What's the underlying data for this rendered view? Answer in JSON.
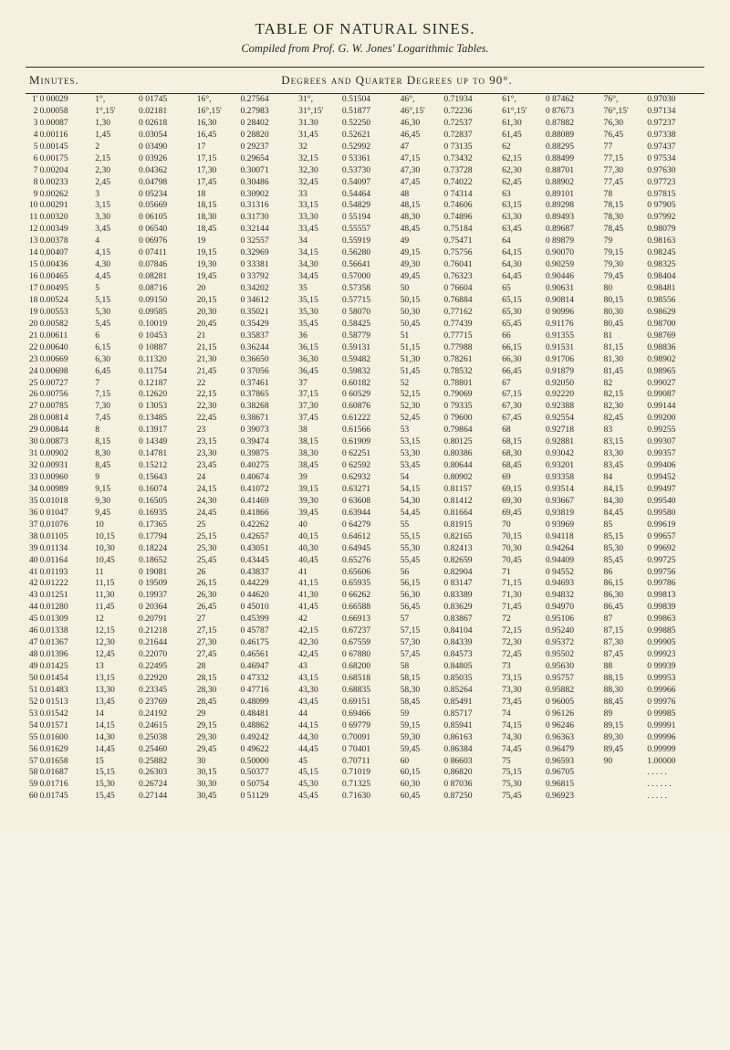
{
  "title": "TABLE OF NATURAL SINES.",
  "subtitle": "Compiled from Prof. G. W. Jones' Logarithmic Tables.",
  "header_minutes": "Minutes.",
  "header_degrees": "Degrees and Quarter Degrees up to 90°.",
  "colors": {
    "paper": "#f4f1e0",
    "ink": "#2a2a1f"
  },
  "typography": {
    "title_fontsize_pt": 13,
    "subtitle_fontsize_pt": 9.5,
    "body_fontsize_pt": 7
  },
  "columns": [
    {
      "label": "",
      "class": "c-idx"
    },
    {
      "label": "",
      "class": "c-min"
    },
    {
      "label": "",
      "class": "c-deg"
    },
    {
      "label": "",
      "class": "c-val"
    },
    {
      "label": "",
      "class": "c-deg"
    },
    {
      "label": "",
      "class": "c-val"
    },
    {
      "label": "",
      "class": "c-deg"
    },
    {
      "label": "",
      "class": "c-val"
    },
    {
      "label": "",
      "class": "c-deg"
    },
    {
      "label": "",
      "class": "c-val"
    },
    {
      "label": "",
      "class": "c-deg"
    },
    {
      "label": "",
      "class": "c-val"
    },
    {
      "label": "",
      "class": "c-deg"
    },
    {
      "label": "",
      "class": "c-val"
    }
  ],
  "rows": [
    [
      "1'",
      "0 00029",
      "1°,",
      "0 01745",
      "16°,",
      "0.27564",
      "31°,",
      "0.51504",
      "46°,",
      "0.71934",
      "61°,",
      "0 87462",
      "76°,",
      "0.97030"
    ],
    [
      "2",
      "0.00058",
      "1°,15'",
      "0.02181",
      "16°,15'",
      "0.27983",
      "31°,15'",
      "0.51877",
      "46°,15'",
      "0.72236",
      "61°,15'",
      "0 87673",
      "76°,15'",
      "0.97134"
    ],
    [
      "3",
      "0.00087",
      "1,30",
      "0 02618",
      "16,30",
      "0 28402",
      "31.30",
      "0.52250",
      "46,30",
      "0.72537",
      "61,30",
      "0.87882",
      "76,30",
      "0.97237"
    ],
    [
      "4",
      "0.00116",
      "1,45",
      "0.03054",
      "16,45",
      "0 28820",
      "31,45",
      "0.52621",
      "46,45",
      "0.72837",
      "61,45",
      "0.88089",
      "76,45",
      "0.97338"
    ],
    [
      "5",
      "0.00145",
      "2",
      "0 03490",
      "17",
      "0 29237",
      "32",
      "0.52992",
      "47",
      "0 73135",
      "62",
      "0.88295",
      "77",
      "0.97437"
    ],
    [
      "6",
      "0.00175",
      "2,15",
      "0 03926",
      "17,15",
      "0.29654",
      "32,15",
      "0 53361",
      "47,15",
      "0.73432",
      "62,15",
      "0.88499",
      "77,15",
      "0 97534"
    ],
    [
      "7",
      "0.00204",
      "2,30",
      "0.04362",
      "17,30",
      "0.30071",
      "32,30",
      "0.53730",
      "47,30",
      "0.73728",
      "62,30",
      "0.88701",
      "77,30",
      "0.97630"
    ],
    [
      "8",
      "0.00233",
      "2,45",
      "0.04798",
      "17,45",
      "0.30486",
      "32,45",
      "0.54097",
      "47,45",
      "0.74022",
      "62,45",
      "0.88902",
      "77,45",
      "0.97723"
    ],
    [
      "9",
      "0.00262",
      "3",
      "0 05234",
      "18",
      "0.30902",
      "33",
      "0.54464",
      "48",
      "0 74314",
      "63",
      "0.89101",
      "78",
      "0.97815"
    ],
    [
      "10",
      "0.00291",
      "3,15",
      "0.05669",
      "18,15",
      "0.31316",
      "33,15",
      "0.54829",
      "48,15",
      "0.74606",
      "63,15",
      "0.89298",
      "78,15",
      "0 97905"
    ],
    [
      "11",
      "0.00320",
      "3,30",
      "0 06105",
      "18,30",
      "0.31730",
      "33,30",
      "0 55194",
      "48,30",
      "0.74896",
      "63,30",
      "0.89493",
      "78,30",
      "0.97992"
    ],
    [
      "12",
      "0.00349",
      "3,45",
      "0 06540",
      "18,45",
      "0.32144",
      "33,45",
      "0.55557",
      "48,45",
      "0.75184",
      "63,45",
      "0.89687",
      "78,45",
      "0.98079"
    ],
    [
      "13",
      "0.00378",
      "4",
      "0 06976",
      "19",
      "0 32557",
      "34",
      "0.55919",
      "49",
      "0.75471",
      "64",
      "0 89879",
      "79",
      "0.98163"
    ],
    [
      "14",
      "0.00407",
      "4,15",
      "0 07411",
      "19,15",
      "0.32969",
      "34,15",
      "0.56280",
      "49,15",
      "0.75756",
      "64,15",
      "0.90070",
      "79,15",
      "0.98245"
    ],
    [
      "15",
      "0.00436",
      "4,30",
      "0.07846",
      "19,30",
      "0 33381",
      "34,30",
      "0.56641",
      "49,30",
      "0.76041",
      "64,30",
      "0.90259",
      "79,30",
      "0.98325"
    ],
    [
      "16",
      "0.00465",
      "4,45",
      "0.08281",
      "19,45",
      "0 33792",
      "34,45",
      "0.57000",
      "49,45",
      "0.76323",
      "64,45",
      "0.90446",
      "79,45",
      "0.98404"
    ],
    [
      "17",
      "0.00495",
      "5",
      "0.08716",
      "20",
      "0.34202",
      "35",
      "0.57358",
      "50",
      "0 76604",
      "65",
      "0.90631",
      "80",
      "0.98481"
    ],
    [
      "18",
      "0.00524",
      "5,15",
      "0.09150",
      "20,15",
      "0 34612",
      "35,15",
      "0.57715",
      "50,15",
      "0.76884",
      "65,15",
      "0.90814",
      "80,15",
      "0.98556"
    ],
    [
      "19",
      "0.00553",
      "5,30",
      "0.09585",
      "20,30",
      "0.35021",
      "35,30",
      "0 58070",
      "50,30",
      "0.77162",
      "65,30",
      "0 90996",
      "80,30",
      "0.98629"
    ],
    [
      "20",
      "0.00582",
      "5,45",
      "0.10019",
      "20,45",
      "0.35429",
      "35,45",
      "0.58425",
      "50,45",
      "0.77439",
      "65,45",
      "0.91176",
      "80,45",
      "0.98700"
    ],
    [
      "21",
      "0.00611",
      "6",
      "0 10453",
      "21",
      "0.35837",
      "36",
      "0.58779",
      "51",
      "0.77715",
      "66",
      "0.91355",
      "81",
      "0.98769"
    ],
    [
      "22",
      "0.00640",
      "6,15",
      "0 10887",
      "21,15",
      "0.36244",
      "36,15",
      "0.59131",
      "51,15",
      "0.77988",
      "66,15",
      "0.91531",
      "81,15",
      "0.98836"
    ],
    [
      "23",
      "0.00669",
      "6,30",
      "0.11320",
      "21,30",
      "0.36650",
      "36,30",
      "0.59482",
      "51,30",
      "0.78261",
      "66,30",
      "0.91706",
      "81,30",
      "0.98902"
    ],
    [
      "24",
      "0.00698",
      "6,45",
      "0.11754",
      "21,45",
      "0 37056",
      "36,45",
      "0.59832",
      "51,45",
      "0.78532",
      "66,45",
      "0.91879",
      "81,45",
      "0.98965"
    ],
    [
      "25",
      "0.00727",
      "7",
      "0.12187",
      "22",
      "0.37461",
      "37",
      "0.60182",
      "52",
      "0.78801",
      "67",
      "0.92050",
      "82",
      "0.99027"
    ],
    [
      "26",
      "0.00756",
      "7,15",
      "0.12620",
      "22,15",
      "0.37865",
      "37,15",
      "0 60529",
      "52,15",
      "0.79069",
      "67,15",
      "0.92220",
      "82,15",
      "0.99087"
    ],
    [
      "27",
      "0.00785",
      "7,30",
      "0 13053",
      "22,30",
      "0.38268",
      "37,30",
      "0.60876",
      "52,30",
      "0 79335",
      "67,30",
      "0.92388",
      "82,30",
      "0.99144"
    ],
    [
      "28",
      "0.00814",
      "7,45",
      "0.13485",
      "22,45",
      "0.38671",
      "37,45",
      "0.61222",
      "52,45",
      "0 79600",
      "67,45",
      "0.92554",
      "82,45",
      "0.99200"
    ],
    [
      "29",
      "0.00844",
      "8",
      "0.13917",
      "23",
      "0 39073",
      "38",
      "0.61566",
      "53",
      "0.79864",
      "68",
      "0.92718",
      "83",
      "0.99255"
    ],
    [
      "30",
      "0.00873",
      "8,15",
      "0 14349",
      "23,15",
      "0.39474",
      "38,15",
      "0.61909",
      "53,15",
      "0.80125",
      "68,15",
      "0.92881",
      "83,15",
      "0.99307"
    ],
    [
      "31",
      "0.00902",
      "8,30",
      "0.14781",
      "23,30",
      "0.39875",
      "38,30",
      "0 62251",
      "53,30",
      "0.80386",
      "68,30",
      "0.93042",
      "83,30",
      "0.99357"
    ],
    [
      "32",
      "0.00931",
      "8,45",
      "0.15212",
      "23,45",
      "0.40275",
      "38,45",
      "0 62592",
      "53,45",
      "0.80644",
      "68,45",
      "0.93201",
      "83,45",
      "0.99406"
    ],
    [
      "33",
      "0.00960",
      "9",
      "0.15643",
      "24",
      "0.40674",
      "39",
      "0.62932",
      "54",
      "0.80902",
      "69",
      "0.93358",
      "84",
      "0.99452"
    ],
    [
      "34",
      "0.00989",
      "9,15",
      "0.16074",
      "24,15",
      "0.41072",
      "39,15",
      "0.63271",
      "54,15",
      "0.81157",
      "69,15",
      "0.93514",
      "84,15",
      "0.99497"
    ],
    [
      "35",
      "0.01018",
      "9,30",
      "0.16505",
      "24,30",
      "0.41469",
      "39,30",
      "0 63608",
      "54,30",
      "0.81412",
      "69,30",
      "0.93667",
      "84,30",
      "0.99540"
    ],
    [
      "36",
      "0 01047",
      "9,45",
      "0.16935",
      "24,45",
      "0.41866",
      "39,45",
      "0.63944",
      "54,45",
      "0.81664",
      "69,45",
      "0.93819",
      "84,45",
      "0.99580"
    ],
    [
      "37",
      "0.01076",
      "10",
      "0.17365",
      "25",
      "0.42262",
      "40",
      "0 64279",
      "55",
      "0.81915",
      "70",
      "0 93969",
      "85",
      "0.99619"
    ],
    [
      "38",
      "0.01105",
      "10,15",
      "0.17794",
      "25,15",
      "0.42657",
      "40,15",
      "0.64612",
      "55,15",
      "0.82165",
      "70,15",
      "0.94118",
      "85,15",
      "0 99657"
    ],
    [
      "39",
      "0.01134",
      "10,30",
      "0.18224",
      "25,30",
      "0.43051",
      "40,30",
      "0.64945",
      "55,30",
      "0.82413",
      "70,30",
      "0.94264",
      "85,30",
      "0 99692"
    ],
    [
      "40",
      "0.01164",
      "10,45",
      "0.18652",
      "25,45",
      "0.43445",
      "40,45",
      "0.65276",
      "55,45",
      "0.82659",
      "70,45",
      "0.94409",
      "85,45",
      "0.99725"
    ],
    [
      "41",
      "0.01193",
      "11",
      "0 19081",
      "26",
      "0.43837",
      "41",
      "0.65606",
      "56",
      "0.82904",
      "71",
      "0 94552",
      "86",
      "0.99756"
    ],
    [
      "42",
      "0.01222",
      "11,15",
      "0 19509",
      "26,15",
      "0.44229",
      "41,15",
      "0.65935",
      "56,15",
      "0 83147",
      "71,15",
      "0.94693",
      "86,15",
      "0.99786"
    ],
    [
      "43",
      "0.01251",
      "11,30",
      "0.19937",
      "26,30",
      "0 44620",
      "41,30",
      "0 66262",
      "56,30",
      "0.83389",
      "71,30",
      "0.94832",
      "86,30",
      "0.99813"
    ],
    [
      "44",
      "0.01280",
      "11,45",
      "0 20364",
      "26,45",
      "0 45010",
      "41,45",
      "0.66588",
      "56,45",
      "0.83629",
      "71,45",
      "0.94970",
      "86,45",
      "0.99839"
    ],
    [
      "45",
      "0.01309",
      "12",
      "0.20791",
      "27",
      "0.45399",
      "42",
      "0.66913",
      "57",
      "0.83867",
      "72",
      "0.95106",
      "87",
      "0.99863"
    ],
    [
      "46",
      "0.01338",
      "12,15",
      "0.21218",
      "27,15",
      "0 45787",
      "42,15",
      "0.67237",
      "57,15",
      "0.84104",
      "72,15",
      "0.95240",
      "87,15",
      "0.99885"
    ],
    [
      "47",
      "0.01367",
      "12,30",
      "0.21644",
      "27,30",
      "0.46175",
      "42,30",
      "0.67559",
      "57,30",
      "0.84339",
      "72,30",
      "0.95372",
      "87,30",
      "0.99905"
    ],
    [
      "48",
      "0.01396",
      "12,45",
      "0.22070",
      "27,45",
      "0.46561",
      "42,45",
      "0 67880",
      "57,45",
      "0.84573",
      "72,45",
      "0.95502",
      "87,45",
      "0.99923"
    ],
    [
      "49",
      "0.01425",
      "13",
      "0.22495",
      "28",
      "0.46947",
      "43",
      "0.68200",
      "58",
      "0.84805",
      "73",
      "0.95630",
      "88",
      "0 99939"
    ],
    [
      "50",
      "0.01454",
      "13,15",
      "0.22920",
      "28,15",
      "0 47332",
      "43,15",
      "0.68518",
      "58,15",
      "0.85035",
      "73,15",
      "0.95757",
      "88,15",
      "0.99953"
    ],
    [
      "51",
      "0.01483",
      "13,30",
      "0.23345",
      "28,30",
      "0 47716",
      "43,30",
      "0.68835",
      "58,30",
      "0.85264",
      "73,30",
      "0.95882",
      "88,30",
      "0.99966"
    ],
    [
      "52",
      "0 01513",
      "13,45",
      "0 23769",
      "28,45",
      "0.48099",
      "43,45",
      "0.69151",
      "58,45",
      "0.85491",
      "73,45",
      "0 96005",
      "88,45",
      "0 99976"
    ],
    [
      "53",
      "0.01542",
      "14",
      "0.24192",
      "29",
      "0.48481",
      "44",
      "0.69466",
      "59",
      "0.85717",
      "74",
      "0 96126",
      "89",
      "0 99985"
    ],
    [
      "54",
      "0.01571",
      "14,15",
      "0.24615",
      "29,15",
      "0.48862",
      "44,15",
      "0 69779",
      "59,15",
      "0.85941",
      "74,15",
      "0 96246",
      "89,15",
      "0.99991"
    ],
    [
      "55",
      "0.01600",
      "14,30",
      "0.25038",
      "29,30",
      "0.49242",
      "44,30",
      "0.70091",
      "59,30",
      "0.86163",
      "74,30",
      "0.96363",
      "89,30",
      "0.99996"
    ],
    [
      "56",
      "0.01629",
      "14,45",
      "0.25460",
      "29,45",
      "0 49622",
      "44,45",
      "0 70401",
      "59,45",
      "0.86384",
      "74,45",
      "0.96479",
      "89,45",
      "0.99999"
    ],
    [
      "57",
      "0.01658",
      "15",
      "0.25882",
      "30",
      "0.50000",
      "45",
      "0.70711",
      "60",
      "0 86603",
      "75",
      "0.96593",
      "90",
      "1.00000"
    ],
    [
      "58",
      "0.01687",
      "15,15",
      "0.26303",
      "30,15",
      "0.50377",
      "45,15",
      "0.71019",
      "60,15",
      "0.86820",
      "75,15",
      "0.96705",
      "",
      ". . . . ."
    ],
    [
      "59",
      "0.01716",
      "15,30",
      "0.26724",
      "30,30",
      "0 50754",
      "45,30",
      "0.71325",
      "60,30",
      "0 87036",
      "75,30",
      "0.96815",
      "",
      ". . . . . ."
    ],
    [
      "60",
      "0.01745",
      "15,45",
      "0.27144",
      "30,45",
      "0 51129",
      "45,45",
      "0.71630",
      "60,45",
      "0.87250",
      "75,45",
      "0.96923",
      "",
      ". . . . ."
    ]
  ]
}
